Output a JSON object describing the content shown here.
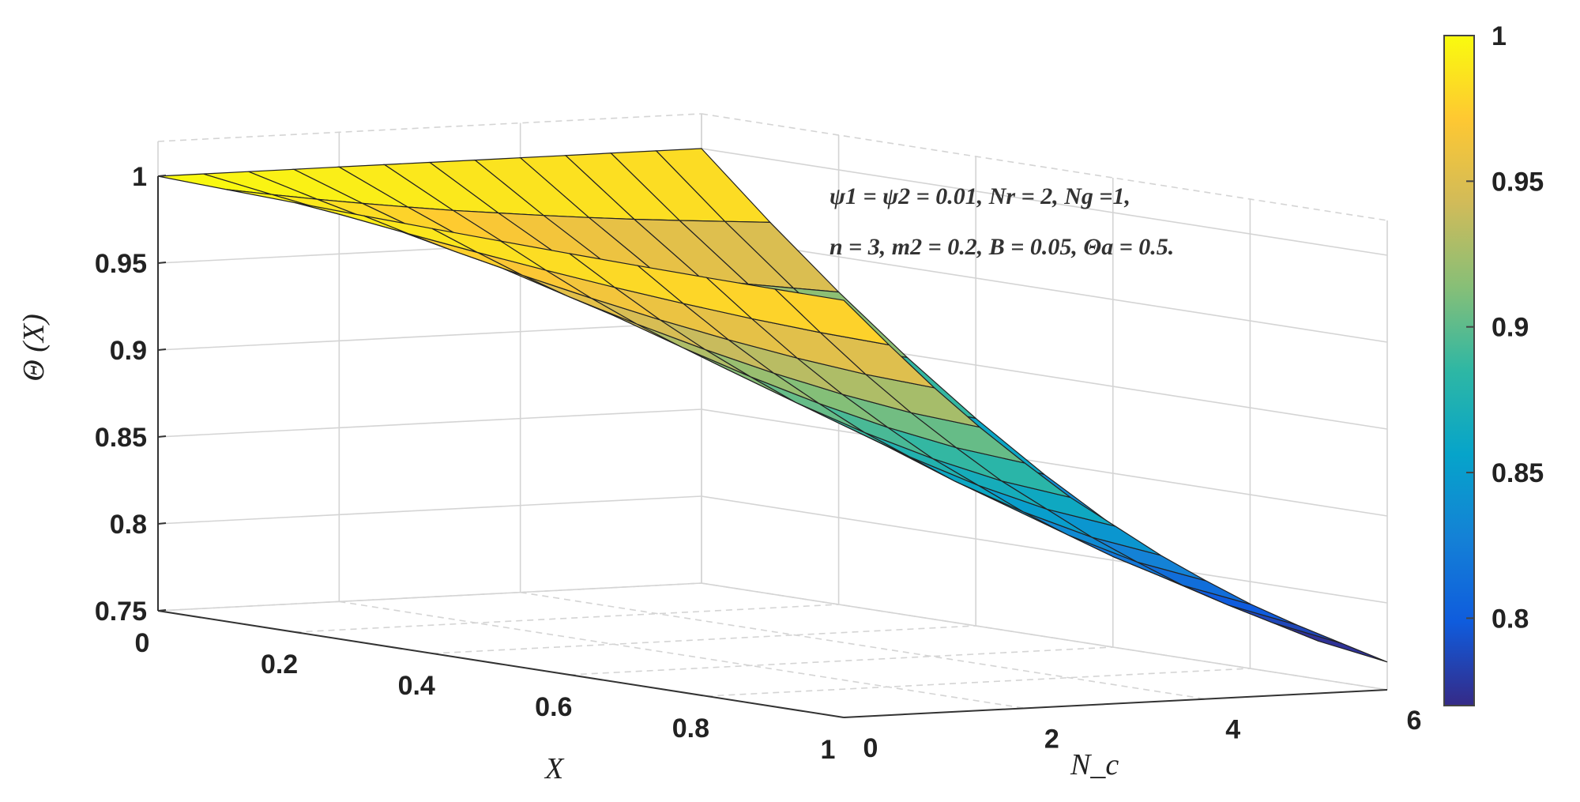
{
  "chart_data": {
    "type": "surface",
    "x": [
      0,
      0.1,
      0.2,
      0.3,
      0.4,
      0.5,
      0.6,
      0.7,
      0.8,
      0.9,
      1.0
    ],
    "nc": [
      0,
      0.5,
      1,
      1.5,
      2,
      2.5,
      3,
      3.5,
      4,
      4.5,
      5,
      5.5,
      6
    ],
    "z_at_x0": 1.0,
    "z_at_x1": [
      0.99,
      0.963,
      0.937,
      0.913,
      0.891,
      0.87,
      0.852,
      0.834,
      0.818,
      0.803,
      0.79,
      0.778,
      0.766
    ],
    "x_label": "X",
    "y_label": "N_c",
    "z_label": "Θ (X)",
    "x_ticks": [
      "0",
      "0.2",
      "0.4",
      "0.6",
      "0.8",
      "1"
    ],
    "y_ticks": [
      "0",
      "2",
      "4",
      "6"
    ],
    "z_ticks": [
      "0.75",
      "0.8",
      "0.85",
      "0.9",
      "0.95",
      "1"
    ],
    "xlim": [
      0,
      1
    ],
    "ylim": [
      0,
      6
    ],
    "zlim": [
      0.75,
      1
    ],
    "colormap": "parula",
    "colorbar": {
      "ticks": [
        "0.8",
        "0.85",
        "0.9",
        "0.95",
        "1"
      ],
      "range": [
        0.77,
        1.0
      ],
      "colors": [
        "#352a87",
        "#0f5cdd",
        "#1481d6",
        "#06a4ca",
        "#2eb7a4",
        "#87bf77",
        "#d1bb59",
        "#fec832",
        "#f9fb0e"
      ]
    },
    "annotation": {
      "line1": "ψ1 = ψ2 = 0.01, Nr = 2, Ng =1,",
      "line2": "n = 3, m2 = 0.2, B = 0.05,  Θa = 0.5."
    },
    "grid": true
  }
}
